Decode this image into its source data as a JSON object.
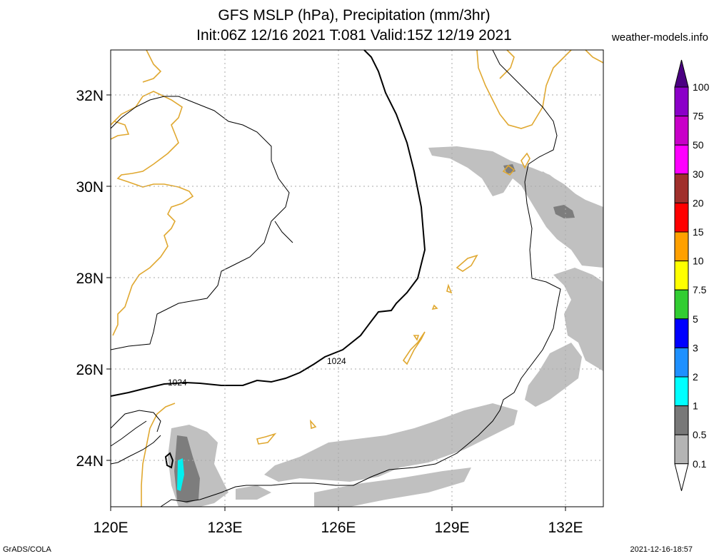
{
  "title": {
    "line1": "GFS MSLP (hPa), Precipitation (mm/3hr)",
    "line2": "Init:06Z 12/16 2021 T:081 Valid:15Z 12/19 2021"
  },
  "credit": "weather-models.info",
  "footer": {
    "left": "GrADS/COLA",
    "right": "2021-12-16-18:57"
  },
  "map": {
    "lon_range": [
      120,
      133
    ],
    "lat_range": [
      23,
      33
    ],
    "x_ticks": [
      "120E",
      "123E",
      "126E",
      "129E",
      "132E"
    ],
    "y_ticks": [
      "32N",
      "30N",
      "28N",
      "26N",
      "24N"
    ],
    "isobar_labels": [
      "1024",
      "1024"
    ]
  },
  "legend": {
    "title_units": "mm/3hr",
    "levels": [
      "100",
      "75",
      "50",
      "30",
      "20",
      "15",
      "10",
      "7.5",
      "5",
      "3",
      "2",
      "1",
      "0.5",
      "0.1"
    ],
    "colors": [
      "#8b00c8",
      "#c800c8",
      "#ff00ff",
      "#a0302c",
      "#ff0000",
      "#ffa000",
      "#ffff00",
      "#32cd32",
      "#0000ff",
      "#1e90ff",
      "#00ffff",
      "#787878",
      "#b4b4b4",
      "#ffffff"
    ]
  },
  "colors": {
    "coast": "#e0a830",
    "isobar": "#000000",
    "precip_light": "#c0c0c0",
    "precip_mid": "#7d7d7d",
    "precip_heavy": "#00f0f0",
    "grid": "#aaaaaa"
  }
}
